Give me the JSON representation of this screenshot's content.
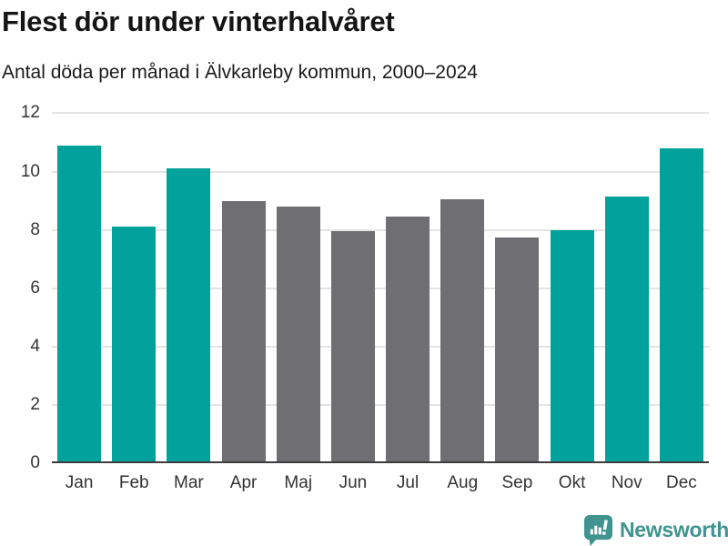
{
  "chart_data": {
    "type": "bar",
    "title": "Flest dör under vinterhalvåret",
    "subtitle": "Antal döda per månad i Älvkarleby kommun, 2000–2024",
    "categories": [
      "Jan",
      "Feb",
      "Mar",
      "Apr",
      "Maj",
      "Jun",
      "Jul",
      "Aug",
      "Sep",
      "Okt",
      "Nov",
      "Dec"
    ],
    "values": [
      10.9,
      8.1,
      10.1,
      9.0,
      8.8,
      7.95,
      8.45,
      9.05,
      7.75,
      8.0,
      9.15,
      10.8
    ],
    "highlight_categories": [
      "Jan",
      "Feb",
      "Mar",
      "Okt",
      "Nov",
      "Dec"
    ],
    "xlabel": "",
    "ylabel": "",
    "ylim": [
      0,
      12
    ],
    "yticks": [
      0,
      2,
      4,
      6,
      8,
      10,
      12
    ],
    "grid": true,
    "legend": "none",
    "colors": {
      "winter_bar": "#00a29b",
      "summer_bar": "#6e6e73",
      "gridline": "#e4e4e4",
      "axis_line": "#3c3c3c",
      "tick_label": "#333333",
      "title_text": "#151515"
    }
  },
  "footer": {
    "brand": "Newsworthy",
    "brand_color": "#3f948f",
    "logo_icon": "newsworthy-speech-bubble-bar-chart-icon"
  }
}
